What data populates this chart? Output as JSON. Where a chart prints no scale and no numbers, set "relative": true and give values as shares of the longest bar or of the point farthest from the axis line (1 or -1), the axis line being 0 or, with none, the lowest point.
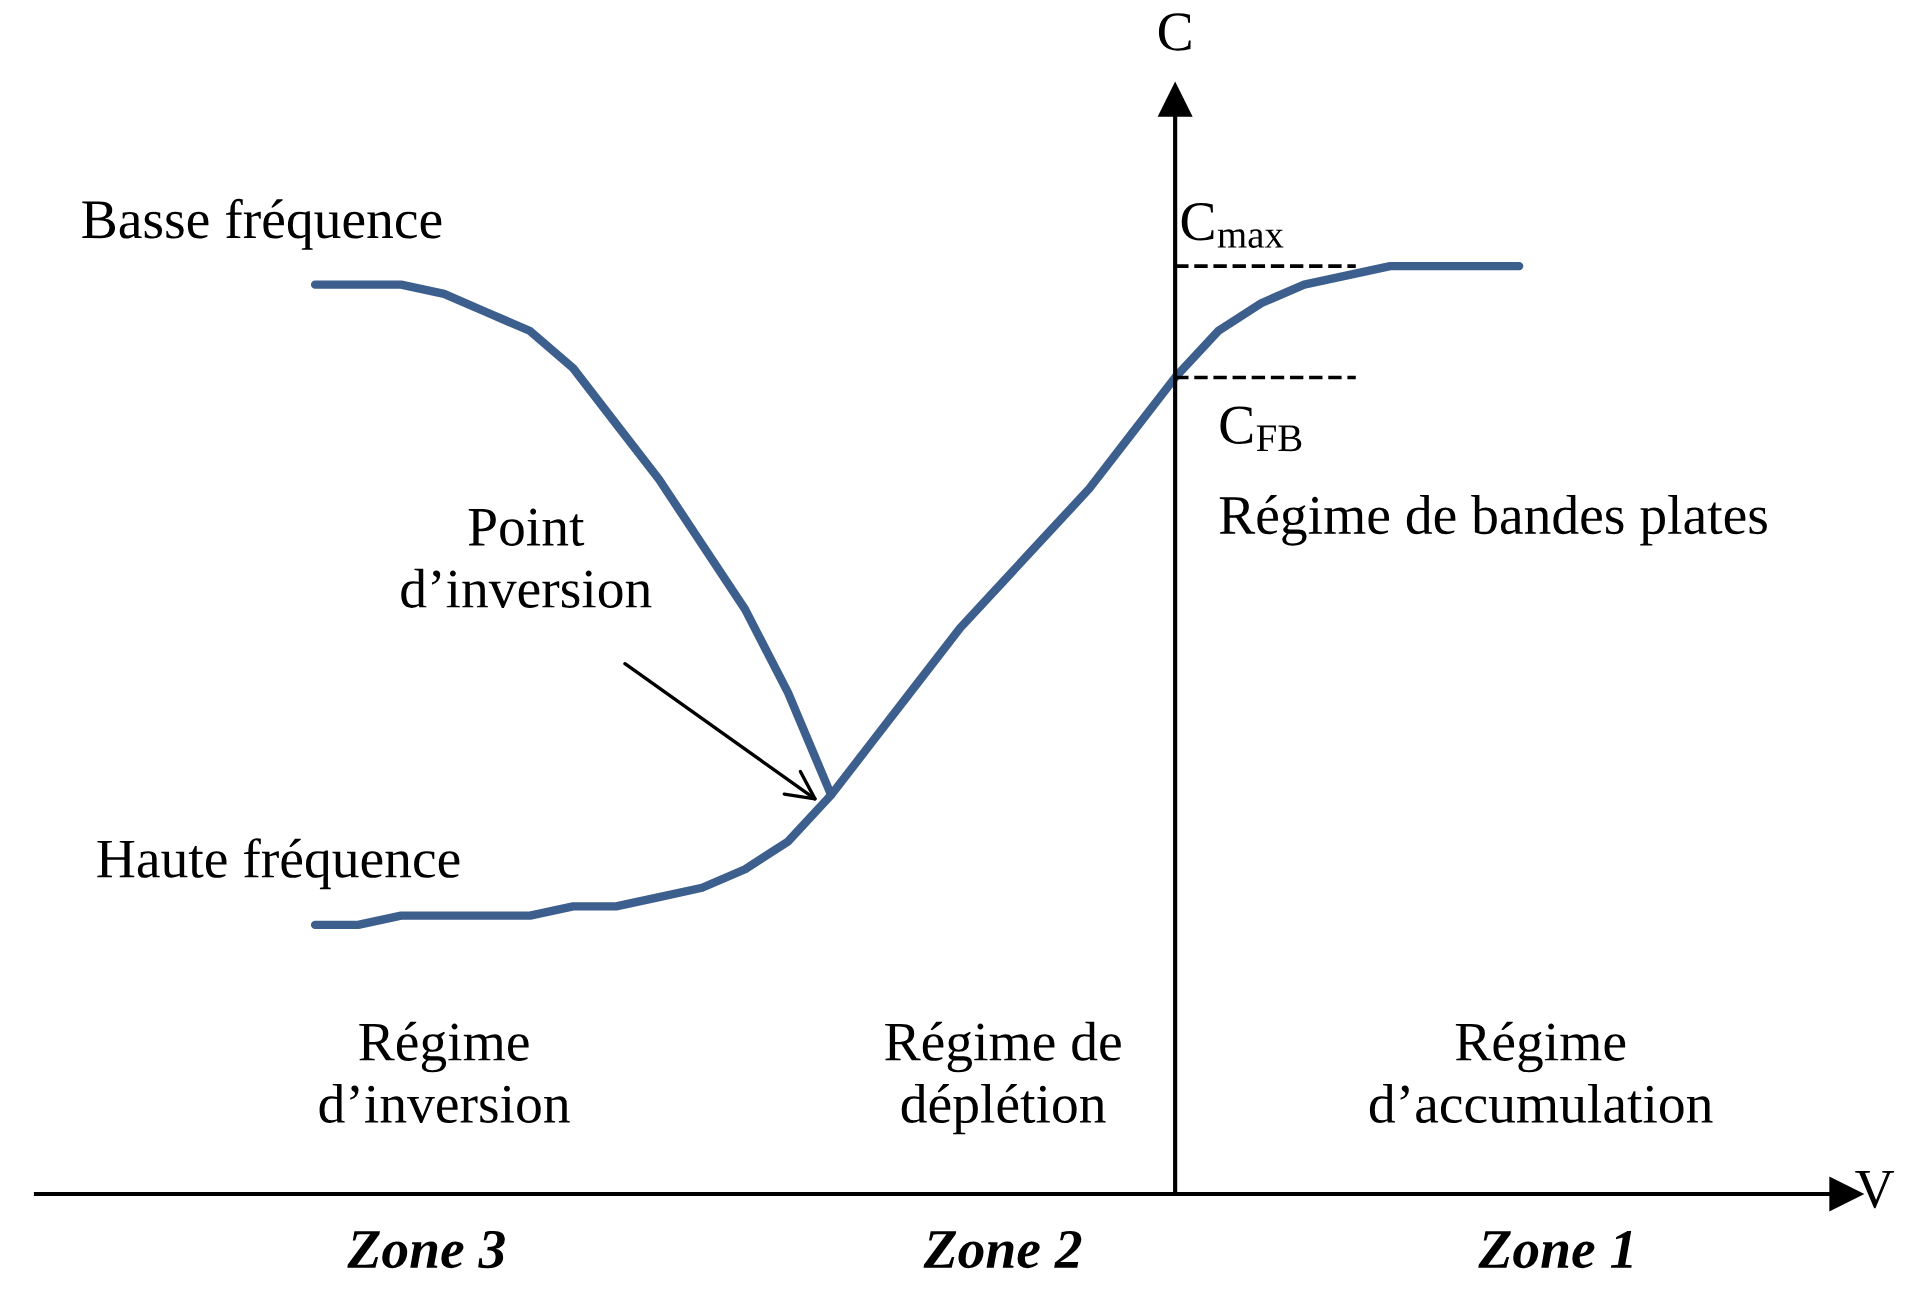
{
  "chart_data": {
    "type": "line",
    "relative": true,
    "ylabel": "C",
    "categories": [
      null,
      null,
      null,
      null,
      null,
      null,
      null,
      null,
      null,
      null,
      null,
      null,
      null,
      null,
      null,
      null,
      null,
      null,
      null,
      null,
      null,
      null,
      null,
      null,
      null,
      null,
      null,
      null,
      null
    ],
    "series": [
      {
        "name": "Basse fréquence",
        "color": "#3d5f8d",
        "values": [
          0.98,
          0.98,
          0.98,
          0.97,
          0.95,
          0.93,
          0.89,
          0.83,
          0.77,
          0.7,
          0.63,
          0.54,
          0.43,
          null,
          null,
          null,
          null,
          null,
          null,
          null,
          null,
          null,
          null,
          null,
          null,
          null,
          null,
          null,
          null
        ]
      },
      {
        "name": "Haute fréquence",
        "color": "#3d5f8d",
        "values": [
          0.29,
          0.29,
          0.3,
          0.3,
          0.3,
          0.3,
          0.31,
          0.31,
          0.32,
          0.33,
          0.35,
          0.38,
          0.43,
          0.49,
          0.55,
          0.61,
          0.66,
          0.71,
          0.76,
          0.82,
          0.88,
          0.93,
          0.96,
          0.98,
          0.99,
          1,
          1,
          1,
          1
        ]
      }
    ],
    "ref_lines": [
      {
        "axis": "y",
        "value": 1,
        "label": "C$_{max}$",
        "color": "#000000",
        "line_style": "dashed"
      },
      {
        "axis": "y",
        "value": 0.88,
        "label": "C$_{FB}$",
        "color": "#000000",
        "line_style": "dashed"
      }
    ],
    "annotations": [
      "Point\nd’inversion",
      "Régime de bandes plates",
      "Régime\nd’inversion",
      "Régime de\ndéplétion",
      "Régime\nd’accumulation",
      "Zone 3",
      "Zone 2",
      "Zone 1",
      "V"
    ],
    "legend": false,
    "line_style": "solid",
    "marker": "none"
  }
}
